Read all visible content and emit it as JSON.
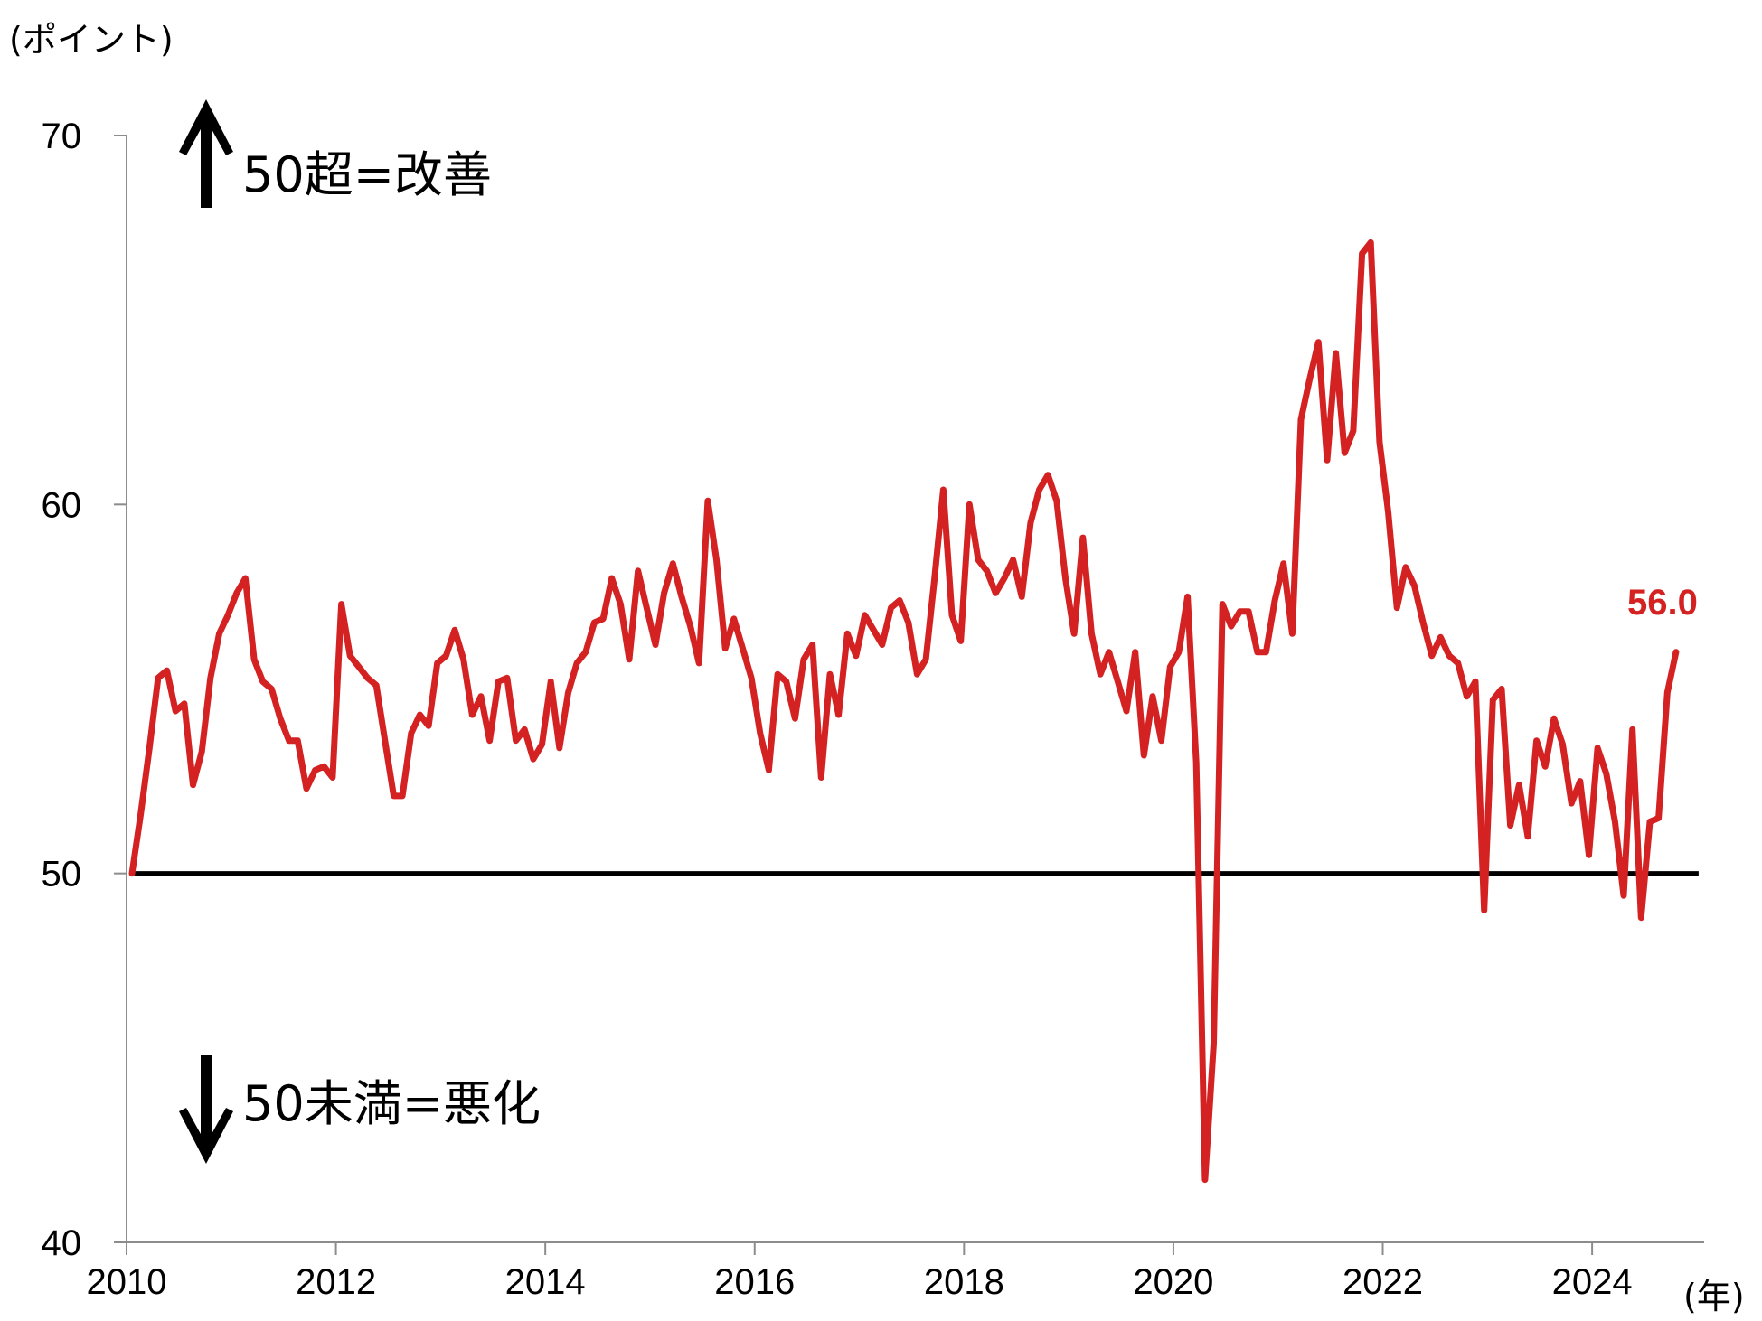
{
  "chart_data": {
    "type": "line",
    "title": "",
    "ylabel": "(ポイント)",
    "xlabel": "(年)",
    "ylim": [
      40,
      70
    ],
    "xlim": [
      2010,
      2025.07
    ],
    "y_ticks": [
      "40",
      "50",
      "60",
      "70"
    ],
    "x_ticks": [
      "2010",
      "2012",
      "2014",
      "2016",
      "2018",
      "2020",
      "2022",
      "2024"
    ],
    "reference_line": {
      "value": 50,
      "color": "#000000"
    },
    "annotations": {
      "up": "50超=改善",
      "down": "50未満=悪化"
    },
    "last_value_label": "56.0",
    "colors": {
      "series": "#d42222",
      "axis": "#8c8c8c",
      "reference": "#000000"
    },
    "series": [
      {
        "color": "#d42222",
        "start": "2010-01",
        "frequency": "monthly",
        "values": [
          50.0,
          51.6,
          53.4,
          55.3,
          55.5,
          54.4,
          54.6,
          52.4,
          53.3,
          55.3,
          56.5,
          57.0,
          57.6,
          58.0,
          55.8,
          55.2,
          55.0,
          54.2,
          53.6,
          53.6,
          52.3,
          52.8,
          52.9,
          52.6,
          57.3,
          55.9,
          55.6,
          55.3,
          55.1,
          53.6,
          52.1,
          52.1,
          53.8,
          54.3,
          54.0,
          55.7,
          55.9,
          56.6,
          55.8,
          54.3,
          54.8,
          53.6,
          55.2,
          55.3,
          53.6,
          53.9,
          53.1,
          53.5,
          55.2,
          53.4,
          54.9,
          55.7,
          56.0,
          56.8,
          56.9,
          58.0,
          57.3,
          55.8,
          58.2,
          57.2,
          56.2,
          57.6,
          58.4,
          57.5,
          56.7,
          55.7,
          60.1,
          58.5,
          56.1,
          56.9,
          56.1,
          55.3,
          53.8,
          52.8,
          55.4,
          55.2,
          54.2,
          55.8,
          56.2,
          52.6,
          55.4,
          54.3,
          56.5,
          55.9,
          57.0,
          56.6,
          56.2,
          57.2,
          57.4,
          56.8,
          55.4,
          55.8,
          58.0,
          60.4,
          57.0,
          56.3,
          60.0,
          58.5,
          58.2,
          57.6,
          58.0,
          58.5,
          57.5,
          59.5,
          60.4,
          60.8,
          60.1,
          58.0,
          56.5,
          59.1,
          56.5,
          55.4,
          56.0,
          55.2,
          54.4,
          56.0,
          53.2,
          54.8,
          53.6,
          55.6,
          56.0,
          57.5,
          53.0,
          41.7,
          45.4,
          57.3,
          56.7,
          57.1,
          57.1,
          56.0,
          56.0,
          57.4,
          58.4,
          56.5,
          62.3,
          63.4,
          64.4,
          61.2,
          64.1,
          61.4,
          62.0,
          66.8,
          67.1,
          61.7,
          59.8,
          57.2,
          58.3,
          57.8,
          56.8,
          55.9,
          56.4,
          55.9,
          55.7,
          54.8,
          55.2,
          49.0,
          54.7,
          55.0,
          51.3,
          52.4,
          51.0,
          53.6,
          52.9,
          54.2,
          53.5,
          51.9,
          52.5,
          50.5,
          53.4,
          52.7,
          51.4,
          49.4,
          53.9,
          48.8,
          51.4,
          51.5,
          54.9,
          56.0
        ]
      }
    ]
  }
}
